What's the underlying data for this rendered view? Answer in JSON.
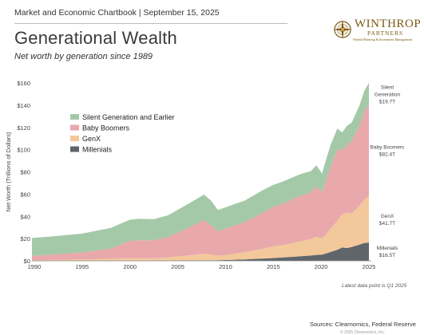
{
  "header": {
    "publication": "Market and Economic Chartbook | September 15, 2025",
    "title": "Generational Wealth",
    "subtitle": "Net worth by generation since 1989"
  },
  "logo": {
    "name": "WINTHROP",
    "sub": "PARTNERS",
    "tagline": "Wealth Planning & Investment Management",
    "color": "#7a5a14"
  },
  "footer": {
    "note": "Latest data point is Q1 2025",
    "source": "Sources: Clearnomics, Federal Reserve",
    "copyright": "© 2025 Clearnomics, Inc."
  },
  "chart_data": {
    "type": "area",
    "stacked": true,
    "ylabel": "Net Worth (Trillions of Dollars)",
    "xlabel": "",
    "ylim": [
      0,
      160
    ],
    "xlim": [
      1989.75,
      2025.25
    ],
    "yticks": [
      0,
      20,
      40,
      60,
      80,
      100,
      120,
      140,
      160
    ],
    "ytick_labels": [
      "$0",
      "$20",
      "$40",
      "$60",
      "$80",
      "$100",
      "$120",
      "$140",
      "$160"
    ],
    "xticks": [
      1990,
      1995,
      2000,
      2005,
      2010,
      2015,
      2020,
      2025
    ],
    "legend": [
      "Silent Generation and Earlier",
      "Baby Boomers",
      "GenX",
      "Millenials"
    ],
    "legend_position": "upper-left",
    "grid": "none",
    "x": [
      1989.75,
      1992,
      1995,
      1998,
      2000,
      2001,
      2002.5,
      2004,
      2006,
      2007.75,
      2008.5,
      2009.2,
      2010,
      2011,
      2012,
      2013,
      2014,
      2015,
      2016,
      2017,
      2018,
      2018.9,
      2019.5,
      2020.1,
      2020.5,
      2021,
      2021.7,
      2022.2,
      2022.7,
      2023.2,
      2024,
      2024.5,
      2025
    ],
    "series": [
      {
        "name": "Millenials",
        "color": "#60656b",
        "values": [
          0,
          0,
          0,
          0.05,
          0.1,
          0.1,
          0.15,
          0.2,
          0.35,
          0.45,
          0.45,
          0.5,
          0.7,
          1.0,
          1.3,
          1.7,
          2.1,
          2.5,
          3.0,
          3.6,
          4.2,
          4.7,
          5.3,
          5.6,
          6.5,
          8.0,
          10.0,
          12.0,
          11.5,
          12.5,
          14.5,
          16.0,
          16.5
        ]
      },
      {
        "name": "GenX",
        "color": "#f3c89b",
        "values": [
          0.6,
          0.9,
          1.3,
          1.9,
          2.4,
          2.2,
          2.1,
          3.0,
          4.4,
          6.0,
          5.1,
          4.1,
          4.6,
          5.5,
          6.5,
          7.6,
          9.0,
          10.6,
          11.2,
          12.5,
          13.7,
          14.8,
          16.2,
          14.7,
          17.0,
          21.0,
          26.0,
          30.0,
          32.0,
          30.0,
          35.0,
          39.0,
          41.7
        ]
      },
      {
        "name": "Baby Boomers",
        "color": "#e8a8ac",
        "values": [
          3.8,
          4.8,
          6.3,
          9.2,
          15.5,
          16.2,
          16.1,
          18.3,
          24.5,
          30.2,
          26.6,
          22.2,
          23.6,
          25.4,
          27.2,
          29.9,
          32.7,
          35.6,
          37.2,
          39.4,
          41.1,
          42.2,
          45.3,
          41.7,
          48.3,
          56.0,
          64.0,
          58.0,
          60.5,
          65.5,
          72.0,
          79.0,
          82.4
        ]
      },
      {
        "name": "Silent Generation and Earlier",
        "color": "#a4c9a8",
        "values": [
          16.1,
          16.3,
          16.9,
          18.5,
          19.0,
          19.3,
          19.1,
          19.5,
          21.5,
          23.0,
          21.8,
          18.9,
          19.2,
          19.3,
          19.2,
          19.9,
          20.2,
          19.7,
          19.9,
          19.5,
          19.5,
          18.8,
          19.1,
          16.5,
          18.7,
          19.5,
          19.0,
          15.5,
          17.5,
          16.5,
          18.0,
          18.5,
          19.7
        ]
      }
    ],
    "end_labels": [
      {
        "series": "Silent Generation and Earlier",
        "lines": [
          "Silent",
          "Generation",
          "$19.7T"
        ]
      },
      {
        "series": "Baby Boomers",
        "lines": [
          "Baby Boomers",
          "$82.4T"
        ]
      },
      {
        "series": "GenX",
        "lines": [
          "GenX",
          "$41.7T"
        ]
      },
      {
        "series": "Millenials",
        "lines": [
          "Millenials",
          "$16.5T"
        ]
      }
    ]
  }
}
